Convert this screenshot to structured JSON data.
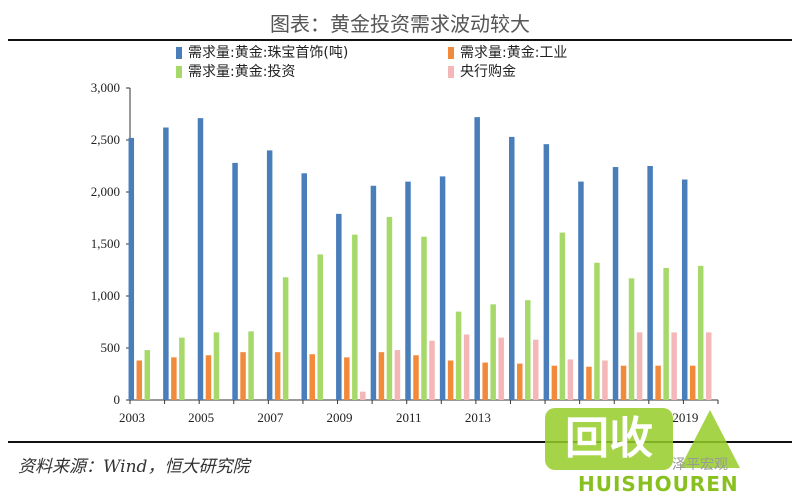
{
  "figure": {
    "title": "图表：黄金投资需求波动较大",
    "source": "资料来源：Wind，恒大研究院"
  },
  "watermark": {
    "logo_text": "回收",
    "logo_subtext": "HUISHOUREN",
    "account": "泽平宏观"
  },
  "colors": {
    "jewelry": "#4a7ebb",
    "industry": "#f28a3c",
    "investment": "#a6d96a",
    "central_bank": "#f4b6b6"
  },
  "chart_data": {
    "type": "bar",
    "title": "",
    "xlabel": "",
    "ylabel": "",
    "ylim": [
      0,
      3000
    ],
    "yticks": [
      "0",
      "500",
      "1,000",
      "1,500",
      "2,000",
      "2,500",
      "3,000"
    ],
    "x_tick_labels": [
      "2003",
      "2005",
      "2007",
      "2009",
      "2011",
      "2013",
      "2019"
    ],
    "legend_position": "top",
    "grid": false,
    "categories": [
      "2003",
      "2004",
      "2005",
      "2006",
      "2007",
      "2008",
      "2009",
      "2010",
      "2011",
      "2012",
      "2013",
      "2014",
      "2015",
      "2016",
      "2017",
      "2018",
      "2019"
    ],
    "series": [
      {
        "name": "需求量:黄金:珠宝首饰(吨)",
        "color": "#4a7ebb",
        "values": [
          2520,
          2620,
          2710,
          2280,
          2400,
          2180,
          1790,
          2060,
          2100,
          2150,
          2720,
          2530,
          2460,
          2100,
          2240,
          2250,
          2120
        ]
      },
      {
        "name": "需求量:黄金:工业",
        "color": "#f28a3c",
        "values": [
          380,
          410,
          430,
          460,
          460,
          440,
          410,
          460,
          430,
          380,
          360,
          350,
          330,
          320,
          330,
          330,
          330
        ]
      },
      {
        "name": "需求量:黄金:投资",
        "color": "#a6d96a",
        "values": [
          480,
          600,
          650,
          660,
          1180,
          1400,
          1590,
          1760,
          1570,
          850,
          920,
          960,
          1610,
          1320,
          1170,
          1270,
          1290
        ]
      },
      {
        "name": "央行购金",
        "color": "#f4b6b6",
        "values": [
          0,
          0,
          0,
          0,
          0,
          0,
          80,
          480,
          570,
          630,
          600,
          580,
          390,
          380,
          650,
          650,
          650
        ]
      }
    ]
  }
}
